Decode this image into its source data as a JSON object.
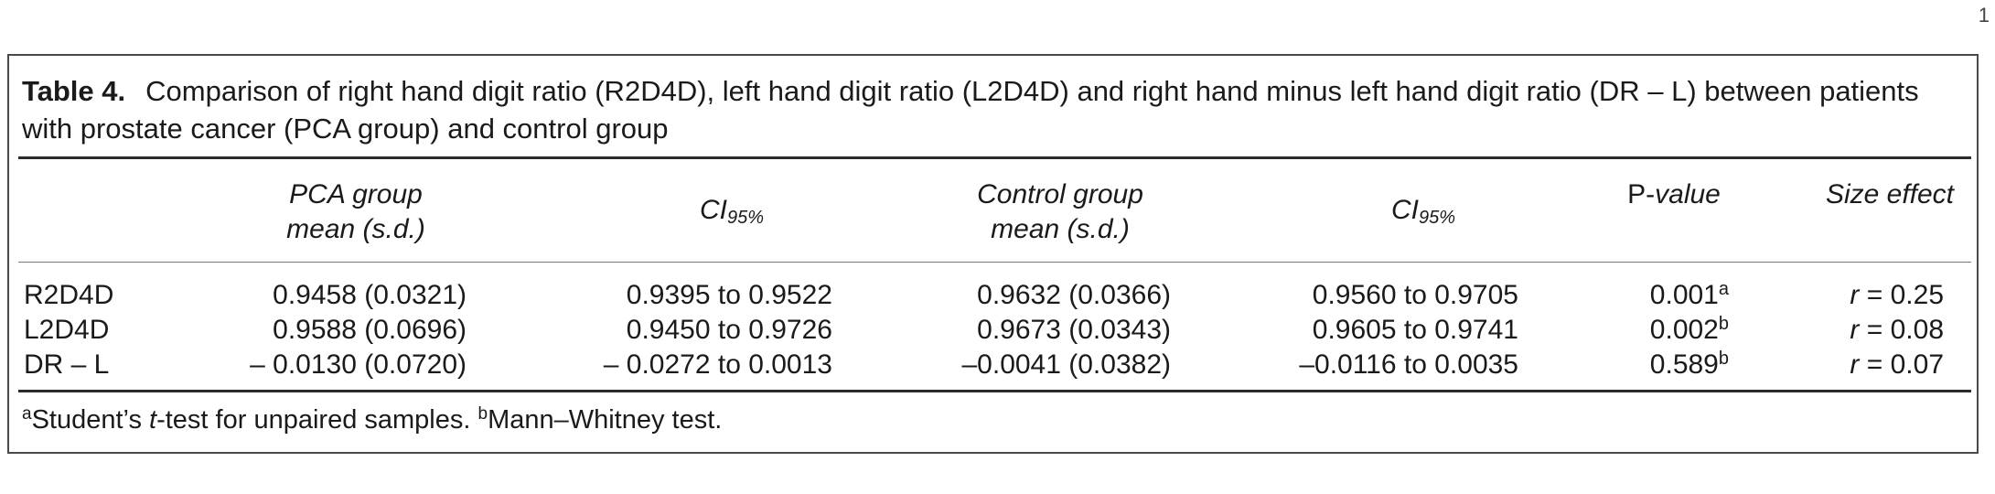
{
  "corner_mark": "1",
  "table": {
    "label": "Table 4.",
    "title": "Comparison of right hand digit ratio (R2D4D), left hand digit ratio (L2D4D) and right hand minus left hand digit ratio (DR – L) between patients with prostate cancer (PCA group) and control group",
    "headers": {
      "pca_line1": "PCA group",
      "pca_line2": "mean (s.d.)",
      "ci_base": "CI",
      "ci_sub": "95%",
      "control_line1": "Control group",
      "control_line2": "mean (s.d.)",
      "p_prefix": "P-",
      "p_suffix": "value",
      "size_effect": "Size effect"
    },
    "rows": [
      {
        "label": "R2D4D",
        "pca": "0.9458 (0.0321)",
        "pca_ci": "0.9395 to 0.9522",
        "control": "0.9632 (0.0366)",
        "control_ci": "0.9560 to 0.9705",
        "p": "0.001",
        "p_mark": "a",
        "r_symbol": "r",
        "r_value": " = 0.25"
      },
      {
        "label": "L2D4D",
        "pca": "0.9588 (0.0696)",
        "pca_ci": "0.9450 to 0.9726",
        "control": "0.9673 (0.0343)",
        "control_ci": "0.9605 to 0.9741",
        "p": "0.002",
        "p_mark": "b",
        "r_symbol": "r",
        "r_value": " = 0.08"
      },
      {
        "label": "DR – L",
        "pca": "– 0.0130 (0.0720)",
        "pca_ci": "– 0.0272 to 0.0013",
        "control": "–0.0041 (0.0382)",
        "control_ci": "–0.0116 to 0.0035",
        "p": "0.589",
        "p_mark": "b",
        "r_symbol": "r",
        "r_value": " = 0.07"
      }
    ],
    "footnote": {
      "a_mark": "a",
      "a_text_pre": "Student’s ",
      "a_text_italic": "t",
      "a_text_post": "-test for unpaired samples. ",
      "b_mark": "b",
      "b_text": "Mann–Whitney test."
    }
  }
}
